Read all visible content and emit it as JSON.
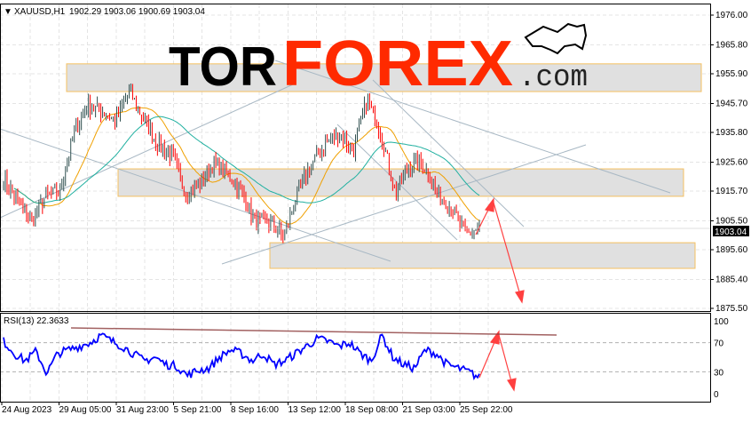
{
  "header": {
    "symbol": "XAUUSD,H1",
    "ohlc": "1902.29 1903.06 1900.69 1903.04"
  },
  "logo": {
    "part1": "TOR",
    "part2": "FOREX",
    "part3": ".com",
    "color_tor": "#000000",
    "color_forex": "#ff2a00"
  },
  "chart_data": {
    "type": "candlestick",
    "title": "",
    "price_axis": {
      "ticks": [
        "1976.00",
        "1965.80",
        "1955.90",
        "1945.70",
        "1935.80",
        "1925.60",
        "1915.70",
        "1905.50",
        "1895.60",
        "1885.40",
        "1875.50"
      ],
      "range": [
        1875.5,
        1976.0
      ],
      "current_price": "1903.04"
    },
    "time_axis": {
      "ticks": [
        "24 Aug 2023",
        "29 Aug 05:00",
        "31 Aug 23:00",
        "5 Sep 21:00",
        "8 Sep 16:00",
        "13 Sep 12:00",
        "18 Sep 08:00",
        "21 Sep 03:00",
        "25 Sep 22:00"
      ]
    },
    "price_path": [
      1920,
      1912,
      1905,
      1914,
      1915,
      1935,
      1945,
      1943,
      1940,
      1950,
      1940,
      1932,
      1928,
      1915,
      1918,
      1925,
      1922,
      1915,
      1905,
      1905,
      1900,
      1915,
      1925,
      1932,
      1935,
      1930,
      1947,
      1935,
      1915,
      1925,
      1925,
      1915,
      1910,
      1901,
      1903.04
    ],
    "moving_averages": [
      {
        "color": "#f0a000"
      },
      {
        "color": "#20b0a0"
      }
    ],
    "zones": [
      [
        1949.8,
        1959.3
      ],
      [
        1913.9,
        1923.3
      ],
      [
        1889.2,
        1898.0
      ]
    ],
    "rsi": {
      "label": "RSI(13) 22.3633",
      "ticks": [
        "100",
        "70",
        "30",
        "0"
      ],
      "levels": [
        70,
        30
      ],
      "color": "#0000ff",
      "values": [
        72,
        55,
        45,
        58,
        28,
        55,
        60,
        65,
        70,
        80,
        72,
        65,
        55,
        45,
        50,
        40,
        38,
        25,
        32,
        35,
        50,
        60,
        55,
        45,
        55,
        40,
        45,
        55,
        65,
        75,
        72,
        65,
        70,
        55,
        45,
        80,
        50,
        40,
        35,
        60,
        55,
        40,
        35,
        30,
        22
      ]
    },
    "bull_color": "#2f4f4f",
    "bear_color": "#ff0000"
  }
}
